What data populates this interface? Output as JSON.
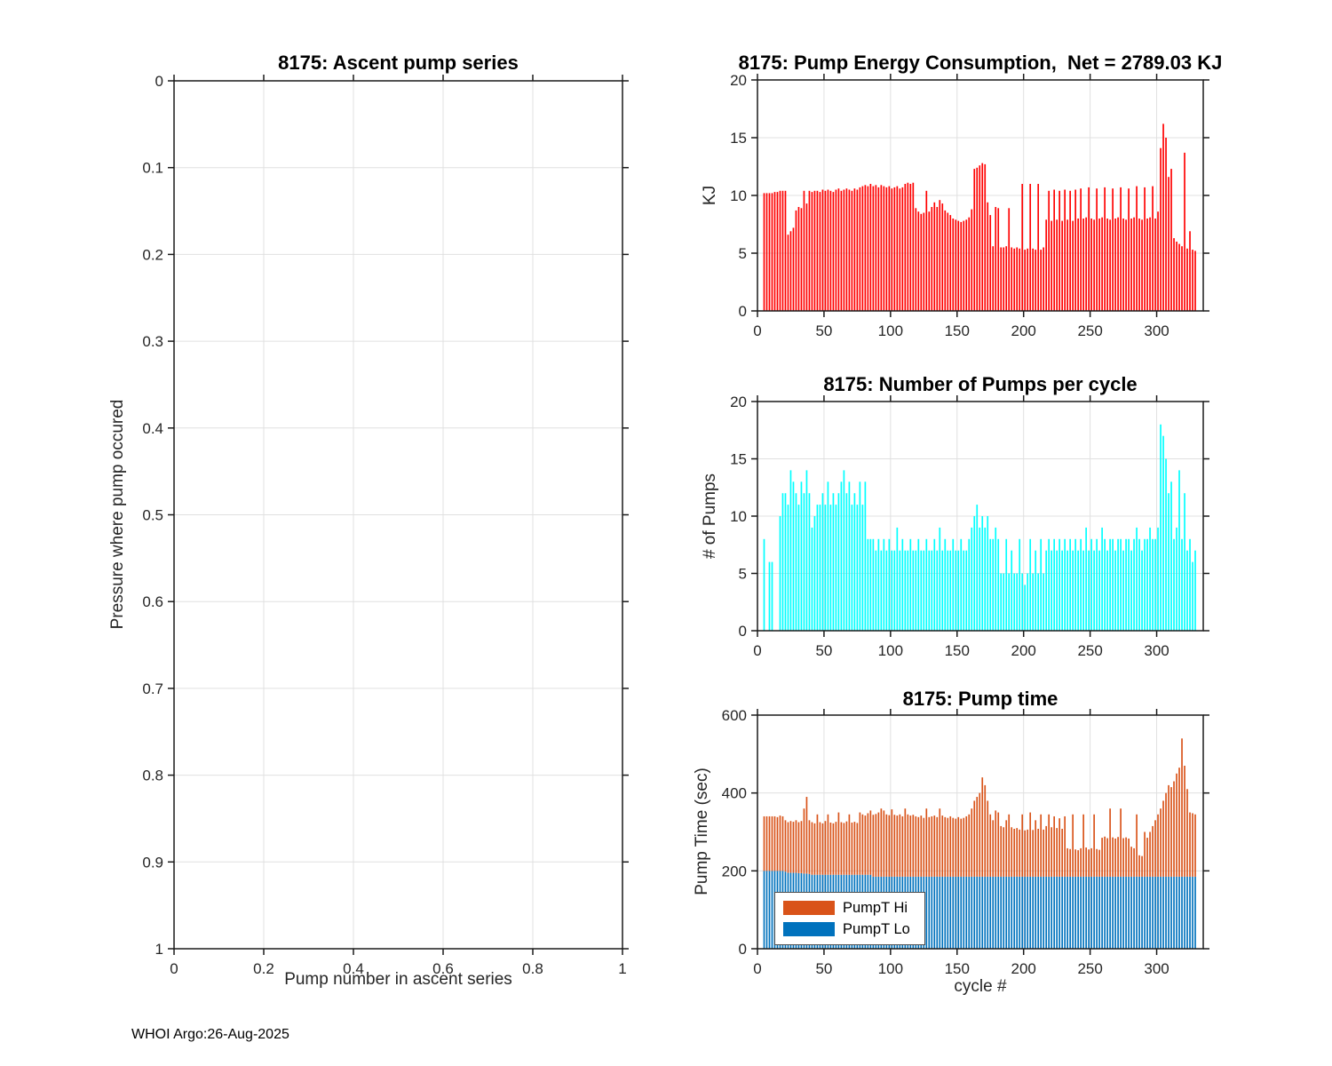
{
  "figure": {
    "footer": "WHOI Argo:26-Aug-2025"
  },
  "colors": {
    "energy_bar": "#ff0000",
    "pumps_bar": "#00ffff",
    "pump_hi": "#d95319",
    "pump_lo": "#0072bd",
    "grid": "#e0e0e0",
    "axis": "#1a1a1a",
    "tick_text": "#262626"
  },
  "chart_data": [
    {
      "id": "ascent",
      "type": "scatter",
      "title": "8175: Ascent pump series",
      "xlabel": "Pump number in ascent series",
      "ylabel": "Pressure where pump occured",
      "xlim": [
        0,
        1
      ],
      "ylim": [
        0,
        1
      ],
      "y_reversed": true,
      "grid": true,
      "xticks": [
        0,
        0.2,
        0.4,
        0.6,
        0.8,
        1
      ],
      "yticks": [
        0,
        0.1,
        0.2,
        0.3,
        0.4,
        0.5,
        0.6,
        0.7,
        0.8,
        0.9,
        1
      ],
      "series": []
    },
    {
      "id": "energy",
      "type": "bar",
      "title": "8175: Pump Energy Consumption,  Net = 2789.03 KJ",
      "net_kj": 2789.03,
      "ylabel": "KJ",
      "xlim": [
        0,
        335
      ],
      "ylim": [
        0,
        20
      ],
      "grid": true,
      "xticks": [
        0,
        50,
        100,
        150,
        200,
        250,
        300
      ],
      "yticks": [
        0,
        5,
        10,
        15,
        20
      ],
      "bar_color": "#ff0000",
      "x": [
        1,
        3,
        5,
        7,
        9,
        11,
        13,
        15,
        17,
        19,
        21,
        23,
        25,
        27,
        29,
        31,
        33,
        35,
        37,
        39,
        41,
        43,
        45,
        47,
        49,
        51,
        53,
        55,
        57,
        59,
        61,
        63,
        65,
        67,
        69,
        71,
        73,
        75,
        77,
        79,
        81,
        83,
        85,
        87,
        89,
        91,
        93,
        95,
        97,
        99,
        101,
        103,
        105,
        107,
        109,
        111,
        113,
        115,
        117,
        119,
        121,
        123,
        125,
        127,
        129,
        131,
        133,
        135,
        137,
        139,
        141,
        143,
        145,
        147,
        149,
        151,
        153,
        155,
        157,
        159,
        161,
        163,
        165,
        167,
        169,
        171,
        173,
        175,
        177,
        179,
        181,
        183,
        185,
        187,
        189,
        191,
        193,
        195,
        197,
        199,
        201,
        203,
        205,
        207,
        209,
        211,
        213,
        215,
        217,
        219,
        221,
        223,
        225,
        227,
        229,
        231,
        233,
        235,
        237,
        239,
        241,
        243,
        245,
        247,
        249,
        251,
        253,
        255,
        257,
        259,
        261,
        263,
        265,
        267,
        269,
        271,
        273,
        275,
        277,
        279,
        281,
        283,
        285,
        287,
        289,
        291,
        293,
        295,
        297,
        299,
        301,
        303,
        305,
        307,
        309,
        311,
        313,
        315,
        317,
        319,
        321,
        323,
        325,
        327,
        329
      ],
      "values": [
        0,
        0,
        10.2,
        10.2,
        10.2,
        10.2,
        10.3,
        10.3,
        10.4,
        10.4,
        10.4,
        6.6,
        6.9,
        7.2,
        8.7,
        9.0,
        8.9,
        10.4,
        9.3,
        10.4,
        10.3,
        10.4,
        10.4,
        10.3,
        10.5,
        10.4,
        10.5,
        10.4,
        10.3,
        10.5,
        10.6,
        10.4,
        10.5,
        10.6,
        10.5,
        10.4,
        10.6,
        10.5,
        10.7,
        10.8,
        10.9,
        10.8,
        11.0,
        10.8,
        10.9,
        10.7,
        10.9,
        10.8,
        10.7,
        10.8,
        10.6,
        10.7,
        10.8,
        10.6,
        10.7,
        11.0,
        11.1,
        11.0,
        11.1,
        8.9,
        8.6,
        8.4,
        8.5,
        10.4,
        8.6,
        9.0,
        9.4,
        9.0,
        9.6,
        9.3,
        8.7,
        8.5,
        8.3,
        8.0,
        7.9,
        7.8,
        7.7,
        7.8,
        7.9,
        8.1,
        8.8,
        12.3,
        12.4,
        12.6,
        12.8,
        12.7,
        9.4,
        8.3,
        5.6,
        9.0,
        8.9,
        5.5,
        5.5,
        5.6,
        8.9,
        5.5,
        5.4,
        5.5,
        5.4,
        11.0,
        5.3,
        5.4,
        11.0,
        5.4,
        5.3,
        11.0,
        5.3,
        5.5,
        7.9,
        10.4,
        7.8,
        10.5,
        7.9,
        10.4,
        7.8,
        10.5,
        7.9,
        10.4,
        7.8,
        10.5,
        8.0,
        10.6,
        8.0,
        8.1,
        10.7,
        8.0,
        7.9,
        10.6,
        8.0,
        8.1,
        10.7,
        8.0,
        7.9,
        10.6,
        8.0,
        8.1,
        10.7,
        8.0,
        7.9,
        10.6,
        8.0,
        8.1,
        10.8,
        8.0,
        7.9,
        10.7,
        8.0,
        8.1,
        10.8,
        8.0,
        8.6,
        14.1,
        16.2,
        15.0,
        11.6,
        12.3,
        6.3,
        6.0,
        5.8,
        5.6,
        13.7,
        5.4,
        6.9,
        5.3,
        5.2
      ]
    },
    {
      "id": "pumps",
      "type": "bar",
      "title": "8175: Number of Pumps per cycle",
      "ylabel": "# of Pumps",
      "xlim": [
        0,
        335
      ],
      "ylim": [
        0,
        20
      ],
      "grid": true,
      "xticks": [
        0,
        50,
        100,
        150,
        200,
        250,
        300
      ],
      "yticks": [
        0,
        5,
        10,
        15,
        20
      ],
      "bar_color": "#00ffff",
      "x": [
        1,
        3,
        5,
        7,
        9,
        11,
        13,
        15,
        17,
        19,
        21,
        23,
        25,
        27,
        29,
        31,
        33,
        35,
        37,
        39,
        41,
        43,
        45,
        47,
        49,
        51,
        53,
        55,
        57,
        59,
        61,
        63,
        65,
        67,
        69,
        71,
        73,
        75,
        77,
        79,
        81,
        83,
        85,
        87,
        89,
        91,
        93,
        95,
        97,
        99,
        101,
        103,
        105,
        107,
        109,
        111,
        113,
        115,
        117,
        119,
        121,
        123,
        125,
        127,
        129,
        131,
        133,
        135,
        137,
        139,
        141,
        143,
        145,
        147,
        149,
        151,
        153,
        155,
        157,
        159,
        161,
        163,
        165,
        167,
        169,
        171,
        173,
        175,
        177,
        179,
        181,
        183,
        185,
        187,
        189,
        191,
        193,
        195,
        197,
        199,
        201,
        203,
        205,
        207,
        209,
        211,
        213,
        215,
        217,
        219,
        221,
        223,
        225,
        227,
        229,
        231,
        233,
        235,
        237,
        239,
        241,
        243,
        245,
        247,
        249,
        251,
        253,
        255,
        257,
        259,
        261,
        263,
        265,
        267,
        269,
        271,
        273,
        275,
        277,
        279,
        281,
        283,
        285,
        287,
        289,
        291,
        293,
        295,
        297,
        299,
        301,
        303,
        305,
        307,
        309,
        311,
        313,
        315,
        317,
        319,
        321,
        323,
        325,
        327,
        329
      ],
      "values": [
        0,
        0,
        8,
        0,
        6,
        6,
        0,
        0,
        10,
        12,
        12,
        11,
        14,
        13,
        12,
        11,
        13,
        12,
        14,
        12,
        9,
        10,
        11,
        11,
        12,
        11,
        13,
        11,
        12,
        11,
        12,
        13,
        14,
        12,
        13,
        11,
        12,
        11,
        13,
        11,
        13,
        8,
        8,
        8,
        7,
        8,
        7,
        8,
        7,
        8,
        7,
        7,
        9,
        7,
        8,
        7,
        7,
        8,
        7,
        7,
        8,
        7,
        7,
        8,
        7,
        7,
        8,
        7,
        9,
        7,
        8,
        7,
        7,
        8,
        7,
        7,
        8,
        7,
        7,
        8,
        9,
        10,
        11,
        9,
        10,
        9,
        10,
        8,
        8,
        9,
        8,
        5,
        5,
        8,
        5,
        7,
        5,
        5,
        8,
        5,
        4,
        5,
        8,
        5,
        7,
        5,
        8,
        5,
        7,
        8,
        7,
        8,
        7,
        8,
        7,
        8,
        7,
        8,
        7,
        8,
        7,
        8,
        7,
        9,
        7,
        8,
        7,
        8,
        7,
        9,
        8,
        7,
        8,
        8,
        7,
        8,
        8,
        7,
        8,
        8,
        7,
        8,
        9,
        8,
        7,
        8,
        8,
        9,
        8,
        8,
        9,
        18,
        17,
        15,
        12,
        13,
        8,
        9,
        14,
        8,
        12,
        7,
        8,
        6,
        7
      ]
    },
    {
      "id": "pumptime",
      "type": "stacked-bar",
      "title": "8175: Pump time",
      "xlabel": "cycle #",
      "ylabel": "Pump Time (sec)",
      "xlim": [
        0,
        335
      ],
      "ylim": [
        0,
        600
      ],
      "grid": true,
      "xticks": [
        0,
        50,
        100,
        150,
        200,
        250,
        300
      ],
      "yticks": [
        0,
        200,
        400,
        600
      ],
      "legend_position": "southwest",
      "x": [
        1,
        3,
        5,
        7,
        9,
        11,
        13,
        15,
        17,
        19,
        21,
        23,
        25,
        27,
        29,
        31,
        33,
        35,
        37,
        39,
        41,
        43,
        45,
        47,
        49,
        51,
        53,
        55,
        57,
        59,
        61,
        63,
        65,
        67,
        69,
        71,
        73,
        75,
        77,
        79,
        81,
        83,
        85,
        87,
        89,
        91,
        93,
        95,
        97,
        99,
        101,
        103,
        105,
        107,
        109,
        111,
        113,
        115,
        117,
        119,
        121,
        123,
        125,
        127,
        129,
        131,
        133,
        135,
        137,
        139,
        141,
        143,
        145,
        147,
        149,
        151,
        153,
        155,
        157,
        159,
        161,
        163,
        165,
        167,
        169,
        171,
        173,
        175,
        177,
        179,
        181,
        183,
        185,
        187,
        189,
        191,
        193,
        195,
        197,
        199,
        201,
        203,
        205,
        207,
        209,
        211,
        213,
        215,
        217,
        219,
        221,
        223,
        225,
        227,
        229,
        231,
        233,
        235,
        237,
        239,
        241,
        243,
        245,
        247,
        249,
        251,
        253,
        255,
        257,
        259,
        261,
        263,
        265,
        267,
        269,
        271,
        273,
        275,
        277,
        279,
        281,
        283,
        285,
        287,
        289,
        291,
        293,
        295,
        297,
        299,
        301,
        303,
        305,
        307,
        309,
        311,
        313,
        315,
        317,
        319,
        321,
        323,
        325,
        327,
        329
      ],
      "series": [
        {
          "name": "PumpT Lo",
          "color": "#0072bd",
          "values": [
            0,
            0,
            200,
            200,
            200,
            200,
            200,
            200,
            200,
            200,
            198,
            195,
            195,
            195,
            195,
            194,
            194,
            193,
            193,
            192,
            190,
            190,
            190,
            190,
            190,
            190,
            190,
            190,
            190,
            190,
            190,
            190,
            190,
            190,
            190,
            190,
            190,
            190,
            190,
            190,
            190,
            190,
            190,
            185,
            185,
            185,
            185,
            185,
            185,
            185,
            185,
            185,
            185,
            185,
            185,
            185,
            185,
            185,
            185,
            185,
            185,
            185,
            185,
            185,
            185,
            185,
            185,
            185,
            185,
            185,
            185,
            185,
            185,
            185,
            185,
            185,
            185,
            185,
            185,
            185,
            185,
            185,
            185,
            185,
            185,
            185,
            185,
            185,
            185,
            185,
            185,
            185,
            185,
            185,
            185,
            185,
            185,
            185,
            185,
            185,
            185,
            185,
            185,
            185,
            185,
            185,
            185,
            185,
            185,
            185,
            185,
            185,
            185,
            185,
            185,
            185,
            185,
            185,
            185,
            185,
            185,
            185,
            185,
            185,
            185,
            185,
            185,
            185,
            185,
            185,
            185,
            185,
            185,
            185,
            185,
            185,
            185,
            185,
            185,
            185,
            185,
            185,
            185,
            185,
            185,
            185,
            185,
            185,
            185,
            185,
            185,
            185,
            185,
            185,
            185,
            185,
            185,
            185,
            185,
            185,
            185,
            185,
            185,
            185,
            185
          ]
        },
        {
          "name": "PumpT Hi",
          "color": "#d95319",
          "values": [
            0,
            0,
            140,
            140,
            140,
            140,
            140,
            138,
            142,
            140,
            132,
            130,
            133,
            131,
            135,
            131,
            134,
            167,
            197,
            138,
            135,
            132,
            155,
            135,
            132,
            138,
            155,
            134,
            132,
            136,
            160,
            135,
            133,
            137,
            155,
            134,
            136,
            133,
            160,
            155,
            152,
            158,
            165,
            159,
            161,
            165,
            175,
            170,
            160,
            158,
            173,
            159,
            157,
            160,
            155,
            175,
            160,
            157,
            159,
            155,
            153,
            157,
            151,
            175,
            153,
            155,
            157,
            153,
            175,
            157,
            153,
            151,
            155,
            151,
            149,
            153,
            149,
            151,
            155,
            160,
            175,
            195,
            205,
            215,
            255,
            235,
            195,
            160,
            145,
            170,
            165,
            130,
            127,
            145,
            160,
            127,
            123,
            125,
            121,
            160,
            119,
            121,
            165,
            120,
            145,
            123,
            160,
            121,
            130,
            160,
            127,
            155,
            125,
            150,
            123,
            155,
            73,
            71,
            160,
            70,
            68,
            73,
            160,
            75,
            70,
            73,
            160,
            71,
            69,
            100,
            103,
            99,
            175,
            101,
            98,
            102,
            175,
            99,
            101,
            98,
            77,
            73,
            160,
            55,
            53,
            115,
            100,
            115,
            130,
            145,
            160,
            175,
            195,
            215,
            235,
            230,
            245,
            265,
            280,
            355,
            285,
            225,
            165,
            163,
            160
          ]
        }
      ]
    }
  ]
}
